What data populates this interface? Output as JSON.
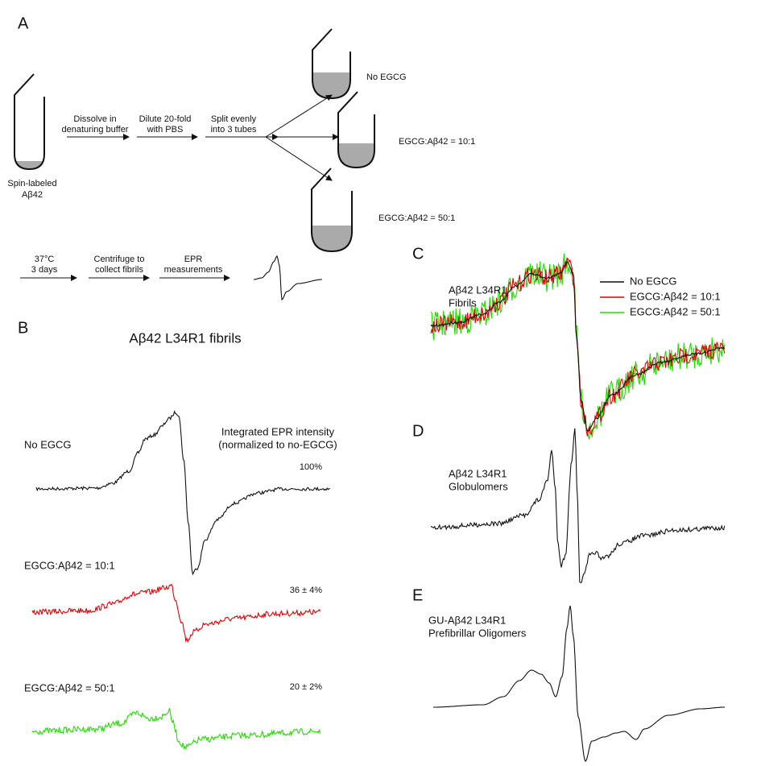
{
  "panel_a": {
    "label": "A",
    "start": {
      "lines": [
        "Spin-labeled",
        "Aβ42"
      ]
    },
    "steps": [
      {
        "lines": [
          "Dissolve in",
          "denaturing buffer"
        ]
      },
      {
        "lines": [
          "Dilute 20-fold",
          "with PBS"
        ]
      },
      {
        "lines": [
          "Split evenly",
          "into 3 tubes"
        ]
      }
    ],
    "tubes": [
      "No EGCG",
      "EGCG:Aβ42 = 10:1",
      "EGCG:Aβ42 = 50:1"
    ],
    "steps2": [
      {
        "lines": [
          "37°C",
          "3 days"
        ]
      },
      {
        "lines": [
          "Centrifuge to",
          "collect fibrils"
        ]
      },
      {
        "lines": [
          "EPR",
          "measurements"
        ]
      }
    ]
  },
  "panel_b": {
    "label": "B",
    "title": "Aβ42  L34R1 fibrils",
    "note": [
      "Integrated EPR intensity",
      "(normalized to no-EGCG)"
    ],
    "traces": [
      {
        "name": "No EGCG",
        "intensity": "100%"
      },
      {
        "name": "EGCG:Aβ42 = 10:1",
        "intensity": "36 ± 4%"
      },
      {
        "name": "EGCG:Aβ42 = 50:1",
        "intensity": "20 ± 2%"
      }
    ]
  },
  "panel_c": {
    "label": "C",
    "sample": [
      "Aβ42  L34R1",
      "Fibrils"
    ],
    "legend": [
      "No EGCG",
      "EGCG:Aβ42 = 10:1",
      "EGCG:Aβ42 = 50:1"
    ]
  },
  "panel_d": {
    "label": "D",
    "sample": [
      "Aβ42  L34R1",
      "Globulomers"
    ]
  },
  "panel_e": {
    "label": "E",
    "sample": [
      "GU-Aβ42  L34R1",
      "Prefibrillar Oligomers"
    ]
  }
}
